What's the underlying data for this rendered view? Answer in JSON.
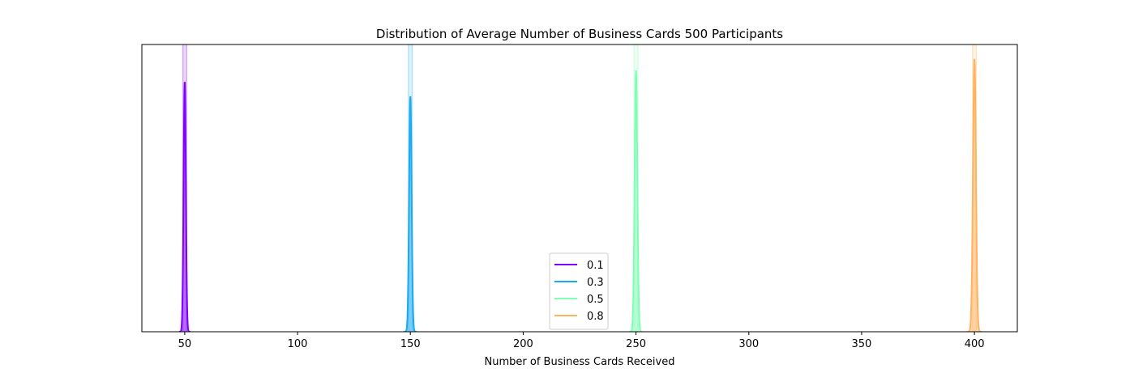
{
  "chart_data": {
    "type": "area",
    "title": "Distribution of Average Number of Business Cards 500 Participants",
    "xlabel": "Number of Business Cards Received",
    "ylabel": "",
    "xlim": [
      31,
      419
    ],
    "x_ticks": [
      50,
      100,
      150,
      200,
      250,
      300,
      350,
      400
    ],
    "y_ticks_visible": false,
    "legend_position": "lower-center",
    "grid": false,
    "series": [
      {
        "name": "0.1",
        "color": "#8000ff",
        "center": 50,
        "spread": 0.5,
        "peak_relative": 0.87
      },
      {
        "name": "0.3",
        "color": "#1aaaf2",
        "center": 150,
        "spread": 0.55,
        "peak_relative": 0.82
      },
      {
        "name": "0.5",
        "color": "#80ffb4",
        "center": 250,
        "spread": 0.6,
        "peak_relative": 0.91
      },
      {
        "name": "0.8",
        "color": "#ffb360",
        "center": 400,
        "spread": 0.65,
        "peak_relative": 0.95
      }
    ]
  }
}
